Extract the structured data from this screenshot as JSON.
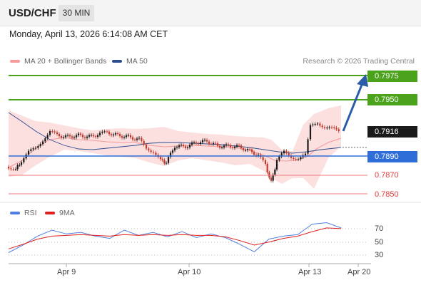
{
  "header": {
    "symbol": "USD/CHF",
    "timeframe": "30 MIN"
  },
  "datetime": "Monday, April 13, 2026 6:14:08 AM CET",
  "legend": [
    {
      "label": "MA 20 + Bollinger Bands",
      "color": "#f59a9a"
    },
    {
      "label": "MA 50",
      "color": "#2c4d8f"
    }
  ],
  "credit": "Research © 2026 Trading Central",
  "colors": {
    "resistance": "#4ba21b",
    "support": "#f07b7b",
    "pivot": "#2f6ed8",
    "arrow": "#2a5ca8",
    "up_candle": "#1a1a1a",
    "down_candle": "#c0392b",
    "band_fill": "#fbd9d9"
  },
  "levels": {
    "r2": "0.7975",
    "r1": "0.7950",
    "last": "0.7916",
    "pivot": "0.7890",
    "s1": "0.7870",
    "s2": "0.7850"
  },
  "rsi_legend": [
    {
      "label": "RSI",
      "color": "#4f7fe0"
    },
    {
      "label": "9MA",
      "color": "#e01f1f"
    }
  ],
  "rsi_ticks": [
    "70",
    "50",
    "30"
  ],
  "x_labels": [
    "Apr 9",
    "Apr 10",
    "Apr 13",
    "Apr 20"
  ],
  "chart_data": {
    "type": "line",
    "series": [
      {
        "name": "RSI",
        "values": [
          30,
          40,
          52,
          60,
          55,
          57,
          52,
          49,
          60,
          53,
          57,
          51,
          58,
          50,
          55,
          50,
          41,
          31,
          48,
          52,
          54,
          68,
          70,
          63
        ]
      },
      {
        "name": "9MA",
        "values": [
          35,
          41,
          48,
          52,
          53,
          54,
          53,
          52,
          54,
          53,
          54,
          53,
          54,
          53,
          53,
          51,
          46,
          40,
          44,
          49,
          52,
          58,
          63,
          62
        ]
      }
    ],
    "ylim": [
      20,
      80
    ]
  }
}
